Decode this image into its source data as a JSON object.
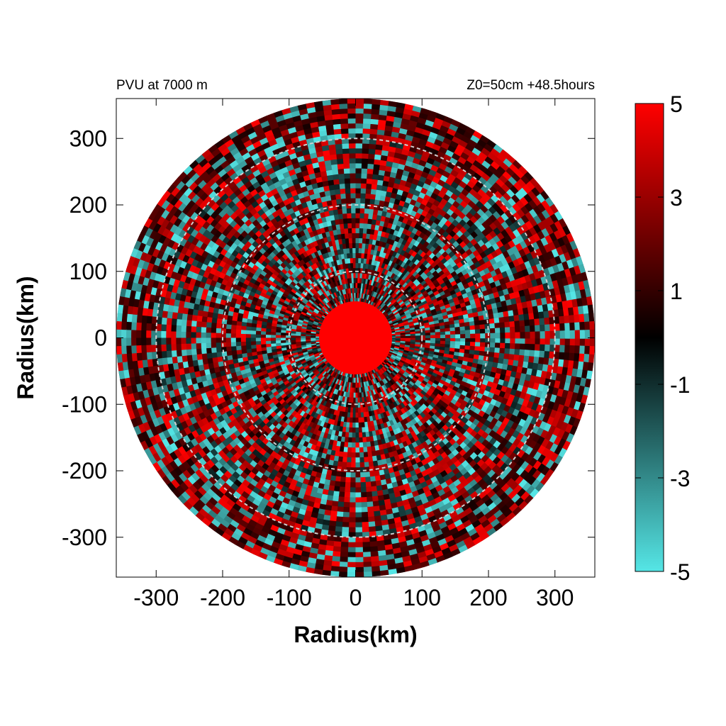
{
  "chart_data": {
    "type": "heatmap",
    "subtitle_left": "PVU at  7000 m",
    "subtitle_right": "Z0=50cm  +48.5hours",
    "xlabel": "Radius(km)",
    "ylabel": "Radius(km)",
    "xlim": [
      -360,
      360
    ],
    "ylim": [
      -360,
      360
    ],
    "xticks": [
      -300,
      -200,
      -100,
      0,
      100,
      200,
      300
    ],
    "yticks": [
      -300,
      -200,
      -100,
      0,
      100,
      200,
      300
    ],
    "xtick_labels": [
      "-300",
      "-200",
      "-100",
      "0",
      "100",
      "200",
      "300"
    ],
    "ytick_labels": [
      "300",
      "200",
      "100",
      "0",
      "-100",
      "-200",
      "-300"
    ],
    "domain_radius": 360,
    "reference_circle_radii": [
      100,
      200,
      300
    ],
    "colorbar": {
      "range": [
        -5,
        5
      ],
      "tick_values": [
        5,
        3,
        1,
        -1,
        -3,
        -5
      ],
      "tick_labels": [
        "5",
        "3",
        "1",
        "-1",
        "-3",
        "-5"
      ],
      "colors": [
        {
          "value": -5,
          "color": "#55e6e6"
        },
        {
          "value": 0,
          "color": "#000000"
        },
        {
          "value": 5,
          "color": "#ff0000"
        }
      ]
    },
    "field_description_values": {
      "core_radius": 55,
      "core_value": 5,
      "background_value": 1.2
    },
    "colors": {
      "positive": "#ff0000",
      "negative": "#55e6e6",
      "zero": "#000000",
      "circle": "#d0d0d0"
    }
  }
}
